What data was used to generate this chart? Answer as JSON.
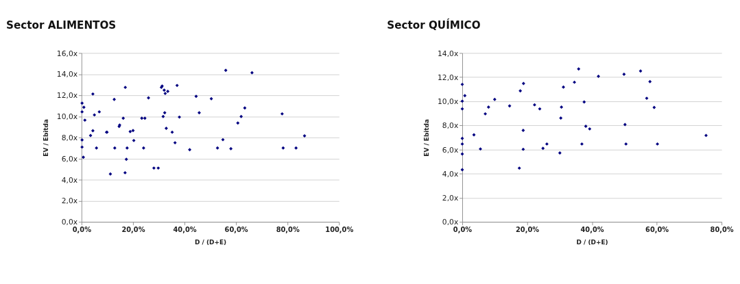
{
  "chart_data": [
    {
      "type": "scatter",
      "title": "Sector ALIMENTOS",
      "xlabel": "D / (D+E)",
      "ylabel": "EV / Ebitda",
      "marker": "diamond",
      "grid": "y",
      "xlim": [
        0,
        100
      ],
      "xticks": [
        {
          "value": 0,
          "label": "0,0%"
        },
        {
          "value": 20,
          "label": "20,0%"
        },
        {
          "value": 40,
          "label": "40,0%"
        },
        {
          "value": 60,
          "label": "60,0%"
        },
        {
          "value": 80,
          "label": "80,0%"
        },
        {
          "value": 100,
          "label": "100,0%"
        }
      ],
      "ylim": [
        0,
        16
      ],
      "yticks": [
        {
          "value": 0,
          "label": "0,0x"
        },
        {
          "value": 2,
          "label": "2,0x"
        },
        {
          "value": 4,
          "label": "4,0x"
        },
        {
          "value": 6,
          "label": "6,0x"
        },
        {
          "value": 8,
          "label": "8,0x"
        },
        {
          "value": 10,
          "label": "10,0x"
        },
        {
          "value": 12,
          "label": "12,0x"
        },
        {
          "value": 14,
          "label": "14,0x"
        },
        {
          "value": 16,
          "label": "16,0x"
        }
      ],
      "series": [
        {
          "color": "#000080",
          "x": [
            0.2,
            0.9,
            0.2,
            1.3,
            0.2,
            0.2,
            0.7,
            4.4,
            5.0,
            6.9,
            4.4,
            3.5,
            5.8,
            9.7,
            9.9,
            11.2,
            12.7,
            12.9,
            14.6,
            14.8,
            16.2,
            17.0,
            16.9,
            17.4,
            17.7,
            18.9,
            20.0,
            20.3,
            23.4,
            24.6,
            24.1,
            26.0,
            28.1,
            29.8,
            31.0,
            31.3,
            32.1,
            32.5,
            33.5,
            32.3,
            31.7,
            32.9,
            35.2,
            36.3,
            37.1,
            38.0,
            42.0,
            44.5,
            45.7,
            56.0,
            66.2,
            50.4,
            63.4,
            62.0,
            60.7,
            54.9,
            52.8,
            58.0,
            77.9,
            78.3,
            83.3,
            86.6
          ],
          "values": [
            11.25,
            10.86,
            10.43,
            9.64,
            7.77,
            7.09,
            6.13,
            12.12,
            10.14,
            10.43,
            8.64,
            8.19,
            7.0,
            8.5,
            8.5,
            4.54,
            11.61,
            7.0,
            9.04,
            9.18,
            9.82,
            12.75,
            4.66,
            5.93,
            7.0,
            8.56,
            8.66,
            7.71,
            9.82,
            9.82,
            7.0,
            11.75,
            5.1,
            5.1,
            12.75,
            12.87,
            12.48,
            12.17,
            12.37,
            10.34,
            9.99,
            8.87,
            8.5,
            7.5,
            12.93,
            9.93,
            6.84,
            11.9,
            10.34,
            14.36,
            14.14,
            11.67,
            10.8,
            9.99,
            9.37,
            7.79,
            7.0,
            6.94,
            10.24,
            7.0,
            7.0,
            8.15
          ]
        }
      ]
    },
    {
      "type": "scatter",
      "title": "Sector QUÍMICO",
      "xlabel": "D / (D+E)",
      "ylabel": "EV / Ebitda",
      "marker": "diamond",
      "grid": "y",
      "xlim": [
        0,
        80
      ],
      "xticks": [
        {
          "value": 0,
          "label": "0,0%"
        },
        {
          "value": 20,
          "label": "20,0%"
        },
        {
          "value": 40,
          "label": "40,0%"
        },
        {
          "value": 60,
          "label": "60,0%"
        },
        {
          "value": 80,
          "label": "80,0%"
        }
      ],
      "ylim": [
        0,
        14
      ],
      "yticks": [
        {
          "value": 0,
          "label": "0,0x"
        },
        {
          "value": 2,
          "label": "2,0x"
        },
        {
          "value": 4,
          "label": "4,0x"
        },
        {
          "value": 6,
          "label": "6,0x"
        },
        {
          "value": 8,
          "label": "8,0x"
        },
        {
          "value": 10,
          "label": "10,0x"
        },
        {
          "value": 12,
          "label": "12,0x"
        },
        {
          "value": 14,
          "label": "14,0x"
        }
      ],
      "series": [
        {
          "color": "#000080",
          "x": [
            0,
            0.8,
            0,
            0,
            0,
            0,
            0,
            0,
            3.6,
            5.6,
            7.1,
            8.1,
            10.0,
            14.6,
            17.9,
            18.9,
            18.8,
            18.8,
            17.6,
            22.3,
            23.9,
            24.9,
            26.1,
            30.1,
            30.4,
            30.6,
            31.2,
            34.6,
            35.9,
            37.6,
            38.1,
            36.9,
            39.3,
            42.0,
            49.9,
            55.0,
            57.9,
            56.9,
            59.2,
            50.2,
            50.5,
            60.2,
            75.2
          ],
          "values": [
            11.4,
            10.47,
            10.01,
            9.37,
            6.92,
            6.46,
            5.63,
            4.33,
            7.22,
            6.05,
            8.96,
            9.52,
            10.16,
            9.62,
            10.87,
            11.48,
            7.59,
            6.02,
            4.46,
            9.71,
            9.37,
            6.1,
            6.46,
            5.72,
            8.61,
            9.52,
            11.18,
            11.58,
            12.68,
            9.94,
            7.93,
            6.46,
            7.71,
            12.07,
            12.24,
            12.51,
            11.63,
            10.25,
            9.49,
            8.07,
            6.46,
            6.46,
            7.17
          ]
        }
      ]
    }
  ]
}
